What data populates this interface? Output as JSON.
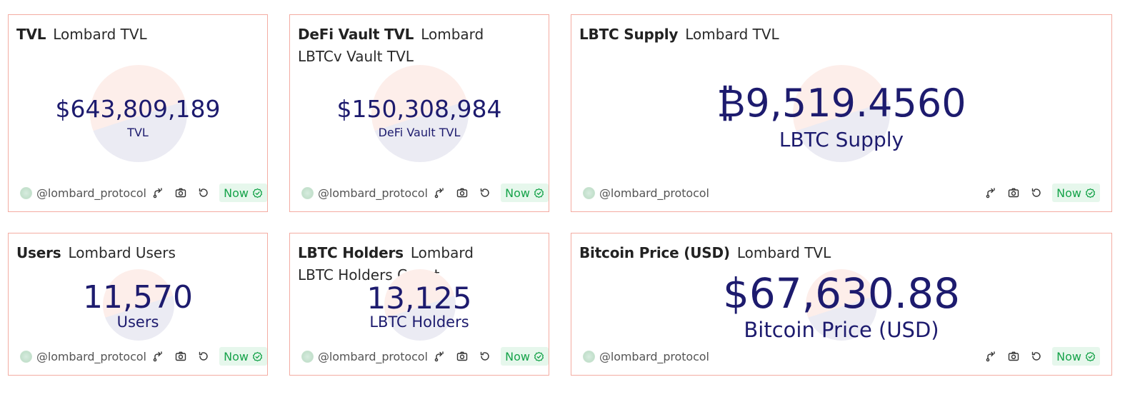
{
  "cards": [
    {
      "title": "TVL",
      "subtitle": "Lombard TVL",
      "value": "$643,809,189",
      "label": "TVL",
      "handle": "@lombard_protocol",
      "status": "Now"
    },
    {
      "title": "DeFi Vault TVL",
      "subtitle": "Lombard LBTCv Vault TVL",
      "value": "$150,308,984",
      "label": "DeFi Vault TVL",
      "handle": "@lombard_protocol",
      "status": "Now"
    },
    {
      "title": "LBTC Supply",
      "subtitle": "Lombard TVL",
      "value": "₿9,519.4560",
      "label": "LBTC Supply",
      "handle": "@lombard_protocol",
      "status": "Now"
    },
    {
      "title": "Users",
      "subtitle": "Lombard Users",
      "value": "11,570",
      "label": "Users",
      "handle": "@lombard_protocol",
      "status": "Now"
    },
    {
      "title": "LBTC Holders",
      "subtitle": "Lombard LBTC Holders Count",
      "value": "13,125",
      "label": "LBTC Holders",
      "handle": "@lombard_protocol",
      "status": "Now"
    },
    {
      "title": "Bitcoin Price (USD)",
      "subtitle": "Lombard TVL",
      "value": "$67,630.88",
      "label": "Bitcoin Price (USD)",
      "handle": "@lombard_protocol",
      "status": "Now"
    }
  ],
  "icons": {
    "fork": "fork-icon",
    "camera": "camera-icon",
    "refresh": "refresh-icon",
    "check": "check-circle-icon",
    "avatar": "avatar"
  },
  "colors": {
    "card_border": "#f4aca2",
    "value_text": "#1d1b6e",
    "status_green": "#16a34a",
    "status_bg": "#e6f7ec"
  }
}
